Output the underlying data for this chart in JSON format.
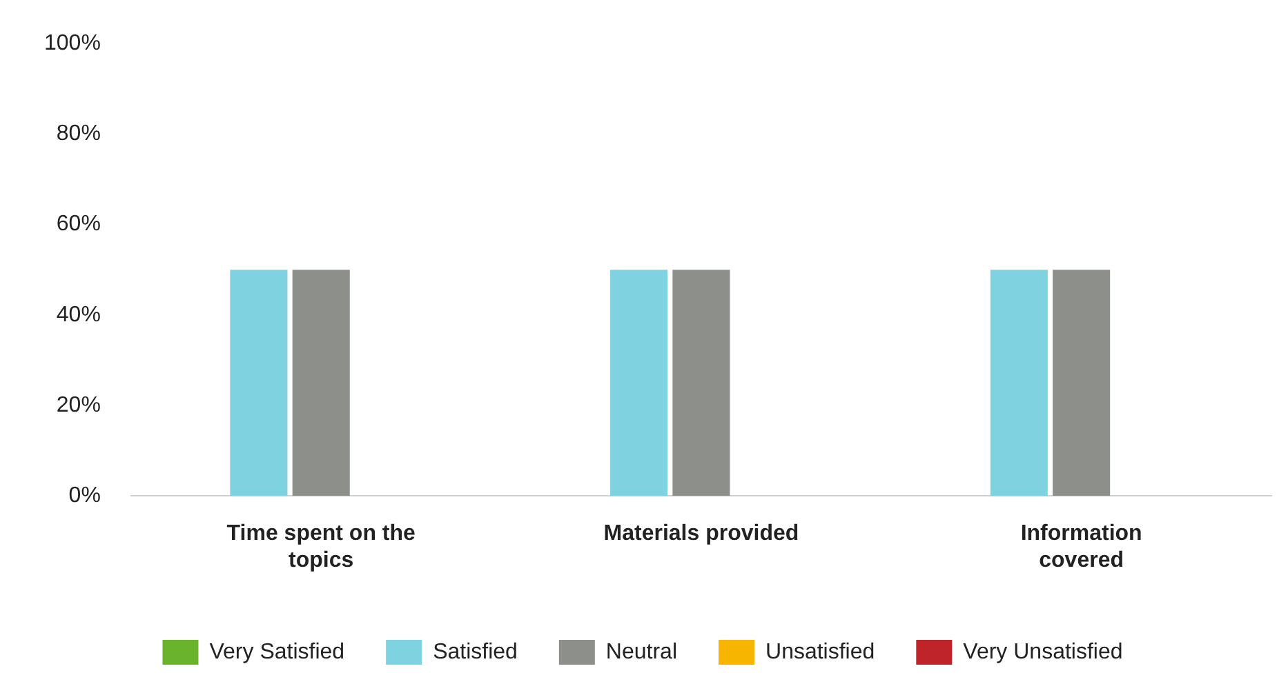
{
  "chart_data": {
    "type": "bar",
    "categories": [
      "Time spent on the topics",
      "Materials provided",
      "Information covered"
    ],
    "series": [
      {
        "name": "Very Satisfied",
        "color": "#6ab42d",
        "values": [
          0,
          0,
          0
        ]
      },
      {
        "name": "Satisfied",
        "color": "#7fd3e0",
        "values": [
          50,
          50,
          50
        ]
      },
      {
        "name": "Neutral",
        "color": "#8c8f8a",
        "values": [
          50,
          50,
          50
        ]
      },
      {
        "name": "Unsatisfied",
        "color": "#f7b500",
        "values": [
          0,
          0,
          0
        ]
      },
      {
        "name": "Very Unsatisfied",
        "color": "#c0242b",
        "values": [
          0,
          0,
          0
        ]
      }
    ],
    "ylim": [
      0,
      100
    ],
    "yticks": [
      {
        "value": 0,
        "label": "0%"
      },
      {
        "value": 20,
        "label": "20%"
      },
      {
        "value": 40,
        "label": "40%"
      },
      {
        "value": 60,
        "label": "60%"
      },
      {
        "value": 80,
        "label": "80%"
      },
      {
        "value": 100,
        "label": "100%"
      }
    ],
    "grid": false,
    "legend": "bottom"
  }
}
